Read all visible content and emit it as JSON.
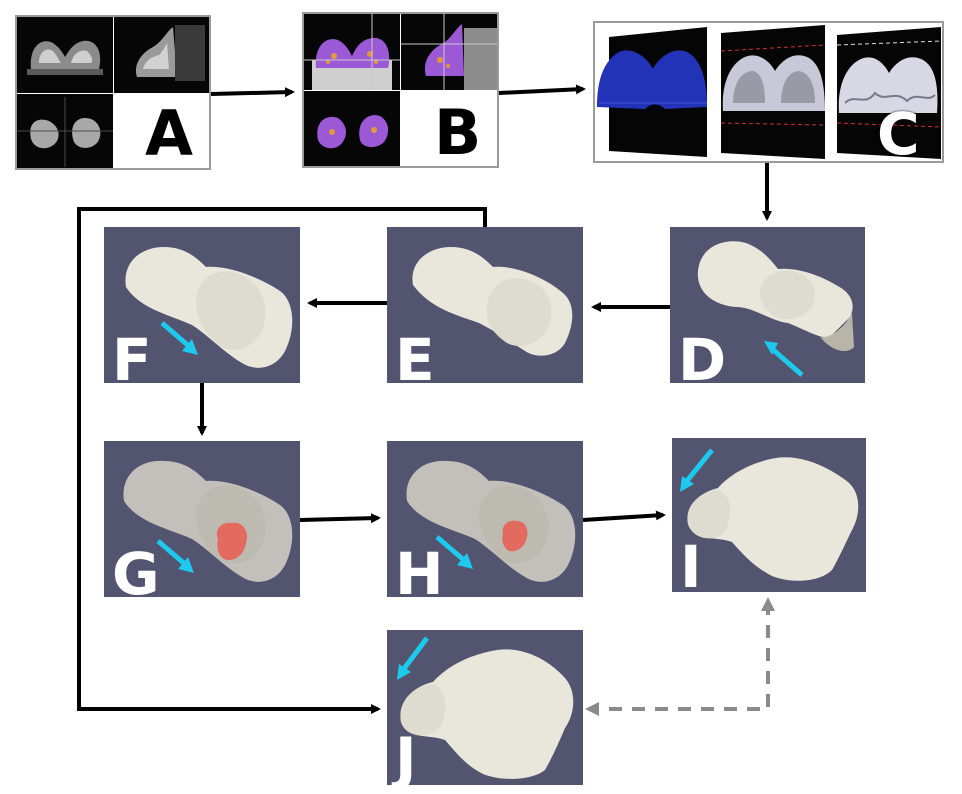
{
  "panels": {
    "A": {
      "label": "A"
    },
    "B": {
      "label": "B"
    },
    "C": {
      "label": "C"
    },
    "D": {
      "label": "D"
    },
    "E": {
      "label": "E"
    },
    "F": {
      "label": "F"
    },
    "G": {
      "label": "G"
    },
    "H": {
      "label": "H"
    },
    "I": {
      "label": "I"
    },
    "J": {
      "label": "J"
    }
  },
  "colors": {
    "render_background": "#525470",
    "tissue": "#e9e6dc",
    "tumor": "#e36a5e",
    "segmentation": "#9b59d6",
    "mesh": "#2233b8",
    "view_arrow": "#1ec9ee",
    "flow_arrow": "#000000",
    "comparison_arrow": "#8a8a8a"
  }
}
